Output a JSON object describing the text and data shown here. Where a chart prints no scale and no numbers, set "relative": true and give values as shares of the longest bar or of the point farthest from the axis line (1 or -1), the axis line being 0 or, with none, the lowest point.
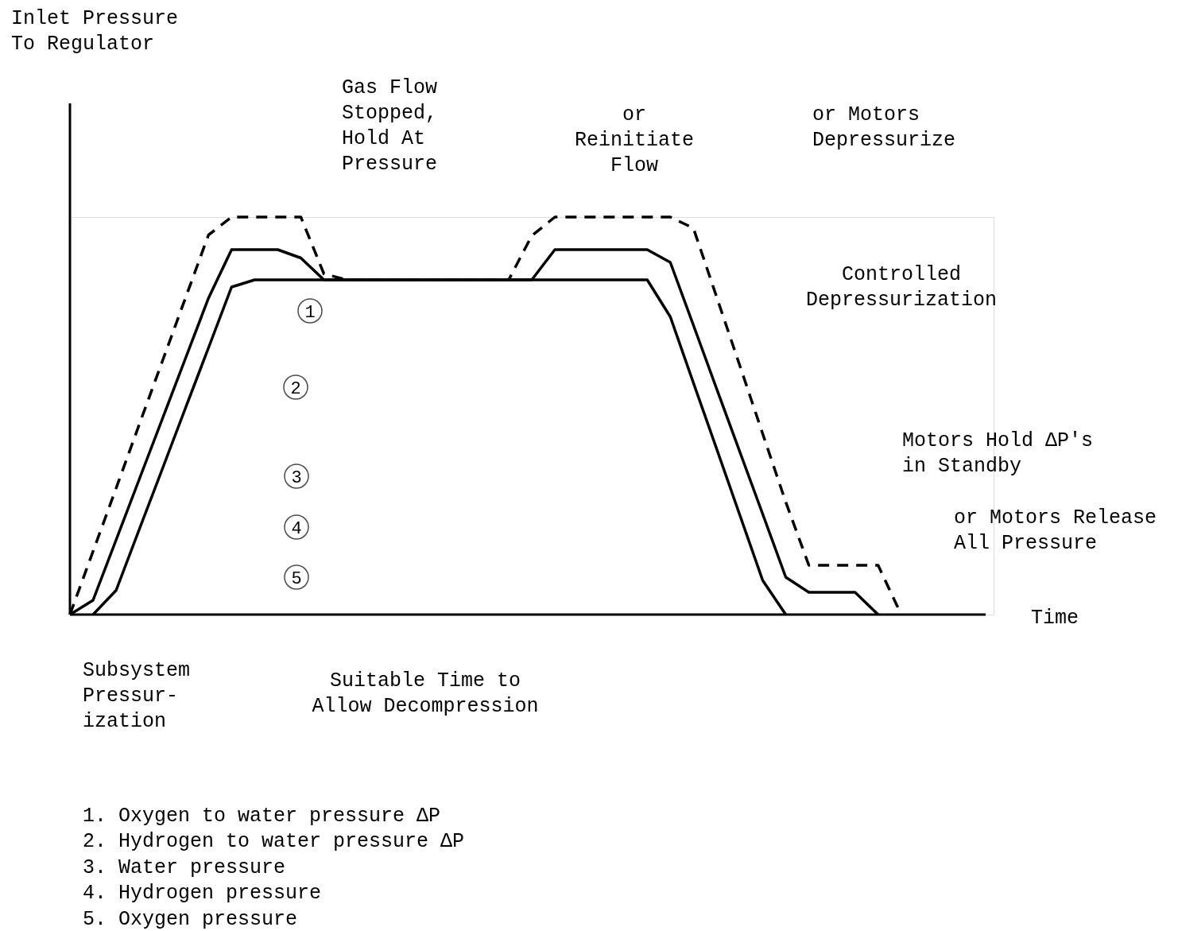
{
  "chart_data": {
    "type": "line",
    "relative": true,
    "xlabel": "Time",
    "categories": [
      null,
      null,
      null,
      null,
      null,
      null,
      null,
      null,
      null,
      null,
      null,
      null,
      null,
      null,
      null,
      null,
      null,
      null,
      null,
      null,
      null,
      null,
      null,
      null,
      null,
      null,
      null,
      null,
      null,
      null,
      null,
      null,
      null,
      null,
      null,
      null,
      null,
      null,
      null,
      null,
      null
    ],
    "series": [
      {
        "color": "#000000",
        "line_style": "solid",
        "values": [
          null,
          0,
          0.061,
          0.214,
          0.366,
          0.519,
          0.671,
          0.824,
          0.842,
          0.842,
          0.842,
          0.842,
          0.842,
          0.842,
          0.842,
          0.842,
          0.842,
          0.842,
          0.842,
          0.842,
          0.842,
          0.842,
          0.842,
          0.842,
          0.842,
          0.842,
          0.749,
          0.583,
          0.418,
          0.252,
          0.086,
          0,
          null,
          null,
          null,
          null,
          null,
          null,
          null,
          null,
          null
        ]
      },
      {
        "color": "#000000",
        "line_style": "solid",
        "values": [
          0,
          0.036,
          0.188,
          0.34,
          0.492,
          0.644,
          0.796,
          0.918,
          0.918,
          0.918,
          0.897,
          0.842,
          0.842,
          0.842,
          0.842,
          0.842,
          0.842,
          0.842,
          0.842,
          0.842,
          0.842,
          0.918,
          0.918,
          0.918,
          0.918,
          0.918,
          0.886,
          0.728,
          0.569,
          0.411,
          0.253,
          0.094,
          0.056,
          0.056,
          0.056,
          0,
          null,
          null,
          null,
          null,
          null
        ]
      },
      {
        "color": "#000000",
        "line_style": "dashed",
        "values": [
          0,
          0.159,
          0.318,
          0.478,
          0.637,
          0.796,
          0.955,
          1,
          1,
          1,
          1,
          0.857,
          0.842,
          0.842,
          0.842,
          0.842,
          0.842,
          0.842,
          0.842,
          0.842,
          0.953,
          1,
          1,
          1,
          1,
          1,
          1,
          0.972,
          0.8,
          0.628,
          0.455,
          0.283,
          0.124,
          0.124,
          0.124,
          0.124,
          0,
          null,
          null,
          null,
          null
        ]
      }
    ],
    "annotations": [
      "Inlet Pressure\nTo Regulator",
      "Gas Flow\nStopped,\nHold At\nPressure",
      "or\nReinitiate\nFlow",
      "or Motors\nDepressurize",
      "Controlled\nDepressurization",
      "Motors Hold ΔP's\nin Standby",
      "or Motors Release\nAll Pressure",
      "Subsystem\nPressur-\nization",
      "Suitable Time to\nAllow Decompression",
      "1",
      "2",
      "3",
      "4",
      "5",
      "1.  Oxygen to water pressure ΔP",
      "2.  Hydrogen to water pressure ΔP",
      "3.  Water pressure",
      "4.  Hydrogen pressure",
      "5.  Oxygen pressure"
    ]
  }
}
